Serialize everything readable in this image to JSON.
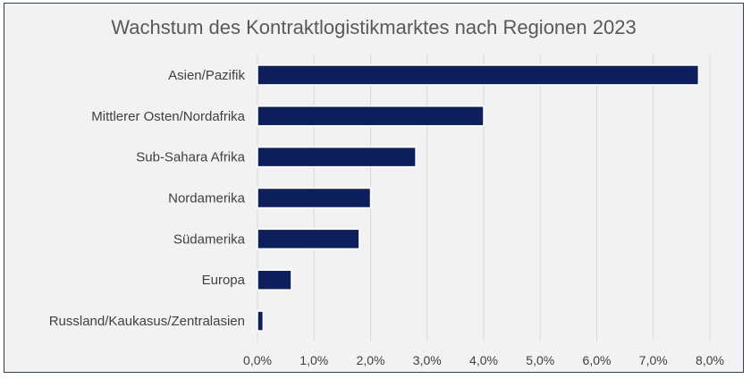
{
  "chart_data": {
    "type": "bar",
    "orientation": "horizontal",
    "title": "Wachstum des Kontraktlogistikmarktes nach Regionen 2023",
    "categories": [
      "Asien/Pazifik",
      "Mittlerer Osten/Nordafrika",
      "Sub-Sahara Afrika",
      "Nordamerika",
      "Südamerika",
      "Europa",
      "Russland/Kaukasus/Zentralasien"
    ],
    "values": [
      7.8,
      4.0,
      2.8,
      2.0,
      1.8,
      0.6,
      0.1
    ],
    "xlim": [
      0,
      8
    ],
    "xticks": [
      "0,0%",
      "1,0%",
      "2,0%",
      "3,0%",
      "4,0%",
      "5,0%",
      "6,0%",
      "7,0%",
      "8,0%"
    ],
    "grid": true,
    "bar_color": "#0d1f5c"
  }
}
